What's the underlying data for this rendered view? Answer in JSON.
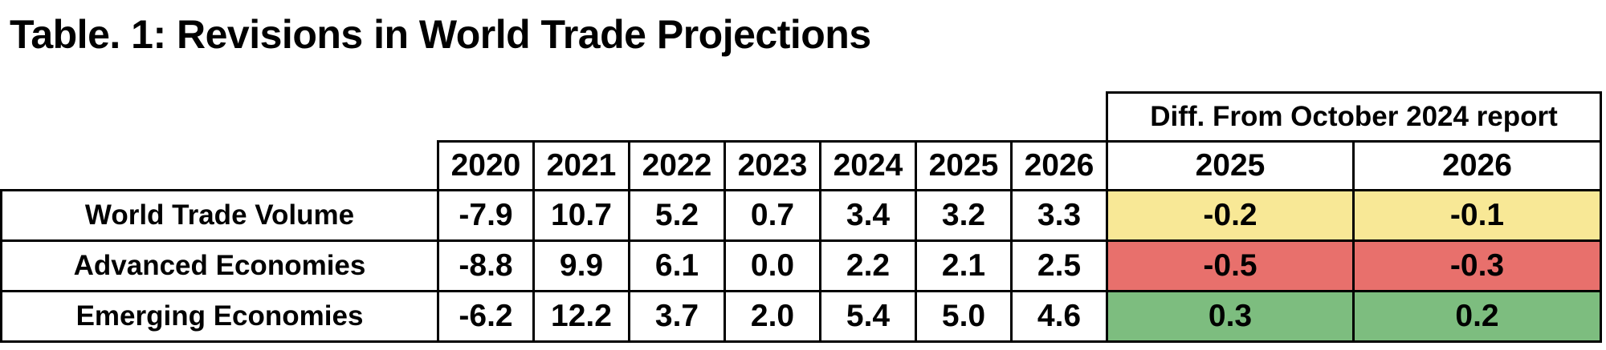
{
  "title": "Table. 1: Revisions in World Trade Projections",
  "diff_header": "Diff. From October 2024 report",
  "years": [
    "2020",
    "2021",
    "2022",
    "2023",
    "2024",
    "2025",
    "2026"
  ],
  "diff_years": [
    "2025",
    "2026"
  ],
  "rows": [
    {
      "label": "World Trade Volume",
      "values": [
        "-7.9",
        "10.7",
        "5.2",
        "0.7",
        "3.4",
        "3.2",
        "3.3"
      ],
      "diffs": [
        "-0.2",
        "-0.1"
      ],
      "diff_color": "#f8e896"
    },
    {
      "label": "Advanced Economies",
      "values": [
        "-8.8",
        "9.9",
        "6.1",
        "0.0",
        "2.2",
        "2.1",
        "2.5"
      ],
      "diffs": [
        "-0.5",
        "-0.3"
      ],
      "diff_color": "#e8706c"
    },
    {
      "label": "Emerging Economies",
      "values": [
        "-6.2",
        "12.2",
        "3.7",
        "2.0",
        "5.4",
        "5.0",
        "4.6"
      ],
      "diffs": [
        "0.3",
        "0.2"
      ],
      "diff_color": "#7dbd7f"
    }
  ]
}
